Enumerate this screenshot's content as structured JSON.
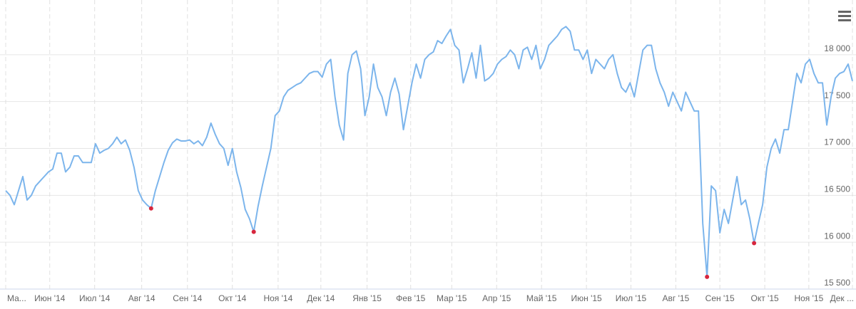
{
  "chart_data": {
    "type": "line",
    "series": [
      {
        "color": "#7cb5ec",
        "values": [
          16550,
          16500,
          16400,
          16550,
          16700,
          16450,
          16500,
          16600,
          16650,
          16700,
          16750,
          16780,
          16950,
          16950,
          16750,
          16800,
          16920,
          16920,
          16850,
          16850,
          16850,
          17050,
          16950,
          16980,
          17000,
          17050,
          17120,
          17050,
          17090,
          16980,
          16800,
          16550,
          16450,
          16400,
          16360,
          16550,
          16700,
          16850,
          16980,
          17060,
          17100,
          17080,
          17080,
          17090,
          17050,
          17080,
          17030,
          17120,
          17270,
          17150,
          17050,
          17000,
          16820,
          17000,
          16750,
          16580,
          16350,
          16250,
          16110,
          16380,
          16600,
          16800,
          17000,
          17350,
          17400,
          17550,
          17620,
          17650,
          17680,
          17700,
          17750,
          17800,
          17820,
          17820,
          17760,
          17900,
          17950,
          17550,
          17250,
          17090,
          17800,
          18000,
          18040,
          17850,
          17350,
          17550,
          17900,
          17650,
          17550,
          17350,
          17600,
          17750,
          17580,
          17200,
          17450,
          17700,
          17900,
          17750,
          17950,
          18000,
          18030,
          18150,
          18120,
          18200,
          18270,
          18100,
          18050,
          17700,
          17850,
          18020,
          17750,
          18100,
          17720,
          17750,
          17800,
          17900,
          17950,
          17980,
          18050,
          18000,
          17850,
          18050,
          18080,
          17950,
          18100,
          17850,
          17950,
          18100,
          18150,
          18200,
          18270,
          18300,
          18250,
          18050,
          18050,
          17950,
          18050,
          17800,
          17950,
          17900,
          17850,
          17950,
          18000,
          17800,
          17650,
          17600,
          17700,
          17550,
          17800,
          18050,
          18100,
          18100,
          17850,
          17700,
          17600,
          17450,
          17600,
          17500,
          17400,
          17600,
          17500,
          17400,
          17400,
          16200,
          15630,
          16600,
          16550,
          16100,
          16350,
          16200,
          16450,
          16700,
          16400,
          16450,
          16250,
          15990,
          16200,
          16400,
          16800,
          17000,
          17100,
          16950,
          17200,
          17200,
          17500,
          17800,
          17700,
          17900,
          17950,
          17800,
          17700,
          17700,
          17250,
          17550,
          17750,
          17800,
          17820,
          17900,
          17720
        ]
      }
    ],
    "highlight_points": [
      34,
      58,
      164,
      175
    ],
    "highlight_color": "#d7263d",
    "xlim": [
      0,
      198
    ],
    "xticks": [
      {
        "value": 0,
        "label": "Ма..."
      },
      {
        "value": 10.3,
        "label": "Июн '14"
      },
      {
        "value": 20.8,
        "label": "Июл '14"
      },
      {
        "value": 31.8,
        "label": "Авг '14"
      },
      {
        "value": 42.5,
        "label": "Сен '14"
      },
      {
        "value": 53,
        "label": "Окт '14"
      },
      {
        "value": 63.7,
        "label": "Ноя '14"
      },
      {
        "value": 73.7,
        "label": "Дек '14"
      },
      {
        "value": 84.5,
        "label": "Янв '15"
      },
      {
        "value": 94.7,
        "label": "Фев '15"
      },
      {
        "value": 104.3,
        "label": "Мар '15"
      },
      {
        "value": 114.8,
        "label": "Апр '15"
      },
      {
        "value": 125.3,
        "label": "Май '15"
      },
      {
        "value": 135.8,
        "label": "Июн '15"
      },
      {
        "value": 146.2,
        "label": "Июл '15"
      },
      {
        "value": 156.7,
        "label": "Авг '15"
      },
      {
        "value": 167,
        "label": "Сен '15"
      },
      {
        "value": 177.5,
        "label": "Окт '15"
      },
      {
        "value": 187.8,
        "label": "Ноя '15"
      },
      {
        "value": 198,
        "label": "Дек ..."
      }
    ],
    "ylim": [
      15500,
      18500
    ],
    "yticks": [
      {
        "value": 15500,
        "label": "15 500"
      },
      {
        "value": 16000,
        "label": "16 000"
      },
      {
        "value": 16500,
        "label": "16 500"
      },
      {
        "value": 17000,
        "label": "17 000"
      },
      {
        "value": 17500,
        "label": "17 500"
      },
      {
        "value": 18000,
        "label": "18 000"
      }
    ],
    "grid": true
  }
}
